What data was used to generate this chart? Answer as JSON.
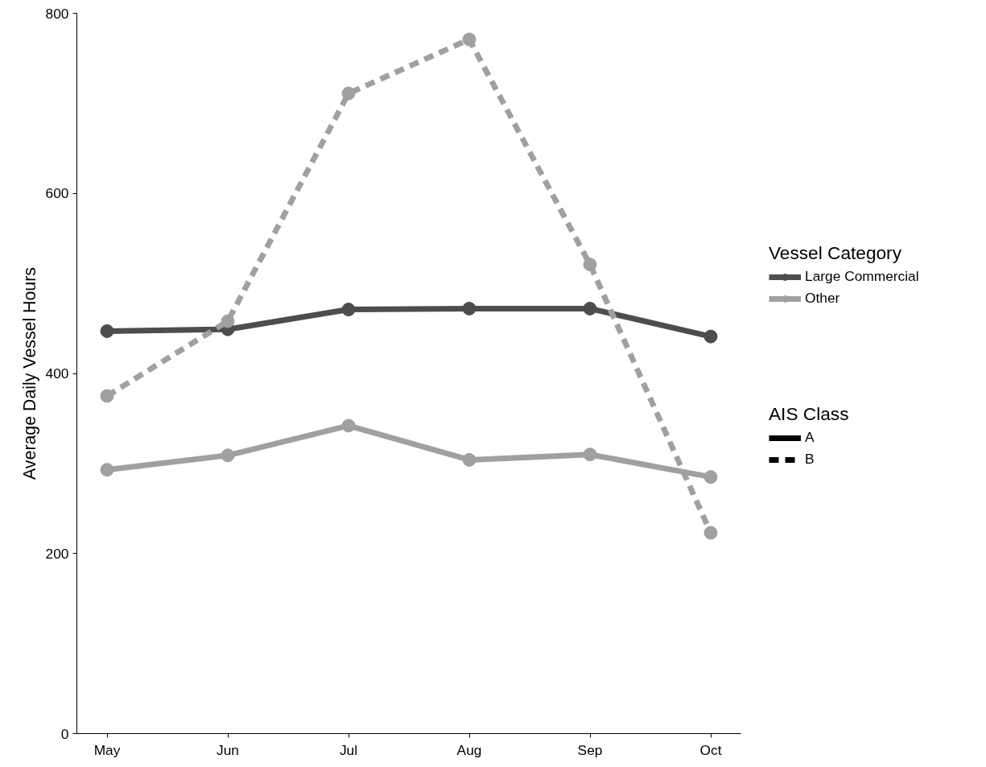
{
  "chart_data": {
    "type": "line",
    "ylabel": "Average Daily Vessel Hours",
    "categories": [
      "May",
      "Jun",
      "Jul",
      "Aug",
      "Sep",
      "Oct"
    ],
    "series": [
      {
        "name": "Large Commercial",
        "color": "#4d4d4d",
        "line_style": "solid",
        "values": [
          447,
          449,
          471,
          472,
          472,
          441
        ]
      },
      {
        "name": "Other",
        "color": "#a0a0a0",
        "line_style": "solid",
        "values": [
          293,
          309,
          342,
          304,
          310,
          285
        ]
      },
      {
        "name": null,
        "color": "#a0a0a0",
        "line_style": "dashed",
        "values": [
          375,
          458,
          711,
          771,
          521,
          223
        ]
      }
    ],
    "ylim": [
      0,
      800
    ],
    "yticks": [
      0,
      200,
      400,
      600,
      800
    ],
    "grid": false,
    "marker": "circle",
    "legend": "right",
    "legend_title": "Vessel Category",
    "annotations": [
      "AIS Class",
      "A",
      "B"
    ]
  }
}
